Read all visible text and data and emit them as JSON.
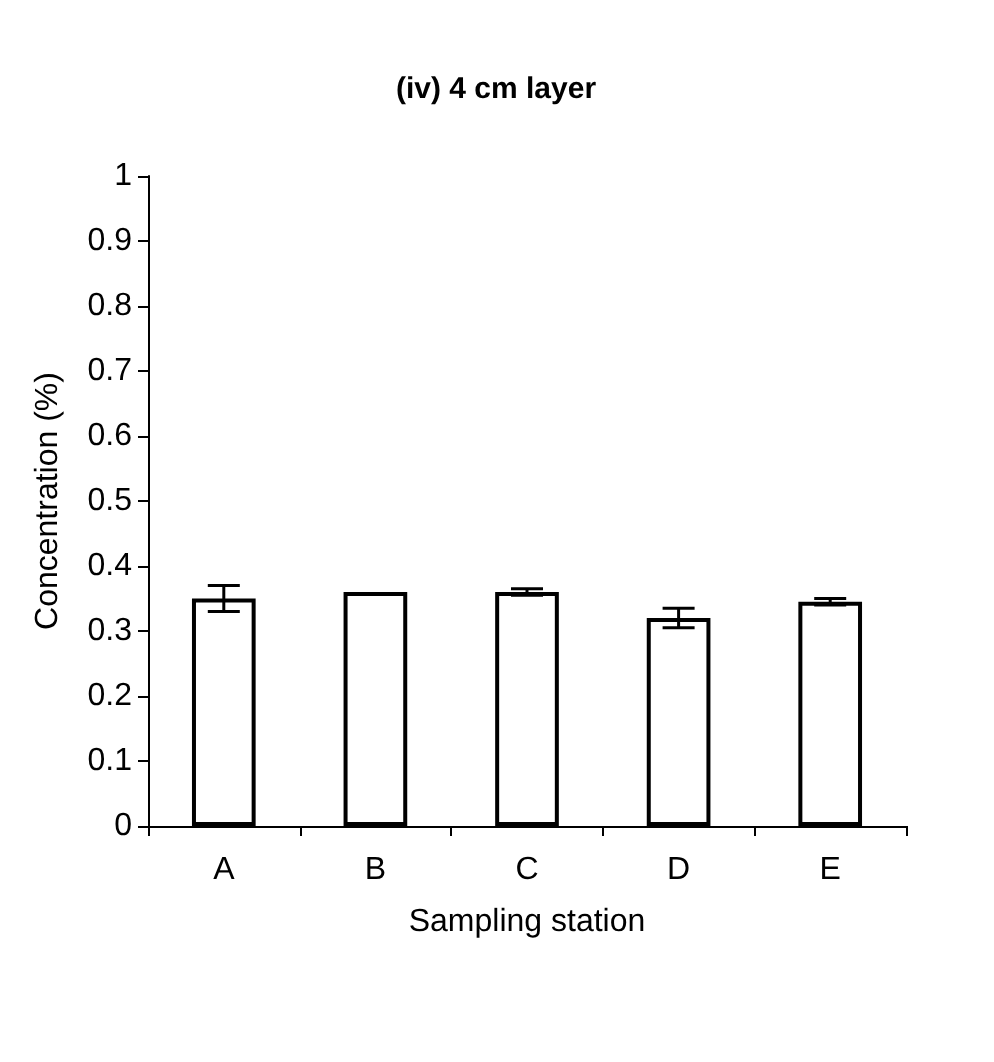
{
  "chart_data": {
    "type": "bar",
    "title": "(iv) 4 cm layer",
    "xlabel": "Sampling station",
    "ylabel": "Concentration (%)",
    "categories": [
      "A",
      "B",
      "C",
      "D",
      "E"
    ],
    "values": [
      0.35,
      0.36,
      0.36,
      0.32,
      0.345
    ],
    "errors": [
      0.02,
      null,
      0.005,
      0.015,
      0.005
    ],
    "color": "#ffffff",
    "ylim": [
      0,
      1
    ],
    "yticks": [
      0,
      0.1,
      0.2,
      0.3,
      0.4,
      0.5,
      0.6,
      0.7,
      0.8,
      0.9,
      1
    ],
    "grid": false
  }
}
